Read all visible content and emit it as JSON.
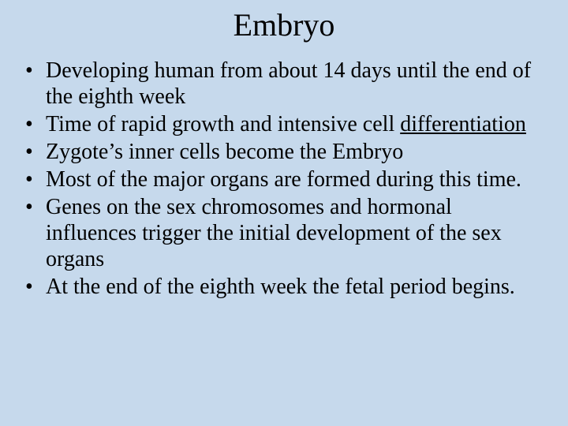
{
  "slide": {
    "background_color": "#c6d9ec",
    "text_color": "#000000",
    "font_family": "Times New Roman",
    "title": "Embryo",
    "title_fontsize": 40,
    "bullet_fontsize": 28,
    "bullets": [
      {
        "pre": "Developing human from about 14 days until the end of the eighth week",
        "underlined": "",
        "post": ""
      },
      {
        "pre": "Time of rapid growth and intensive cell ",
        "underlined": "differentiation",
        "post": ""
      },
      {
        "pre": "Zygote’s inner cells become the Embryo",
        "underlined": "",
        "post": ""
      },
      {
        "pre": "Most of the major organs are formed during this time.",
        "underlined": "",
        "post": ""
      },
      {
        "pre": "Genes on the sex chromosomes and hormonal influences trigger the initial development of the sex organs",
        "underlined": "",
        "post": ""
      },
      {
        "pre": "At the end of the eighth week the fetal period begins.",
        "underlined": "",
        "post": ""
      }
    ]
  }
}
